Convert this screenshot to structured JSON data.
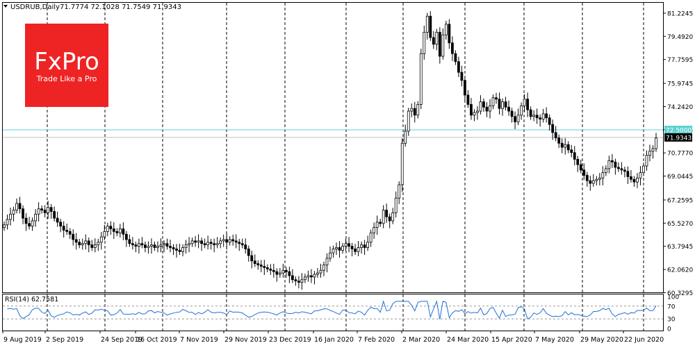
{
  "chart_data": {
    "type": "candlestick",
    "symbol_label": "USDRUB,Daily",
    "ohlc_readout": "71.7774 72.1028 71.7549 71.9343",
    "ylim": [
      60.3,
      82.0
    ],
    "y_ticks": [
      "81.2245",
      "79.4920",
      "77.7595",
      "75.9745",
      "74.2420",
      "72.5095",
      "70.7770",
      "69.0445",
      "67.2595",
      "65.5270",
      "63.7945",
      "62.0620",
      "60.3295"
    ],
    "x_labels": [
      "9 Aug 2019",
      "2 Sep 2019",
      "24 Sep 2019",
      "16 Oct 2019",
      "7 Nov 2019",
      "29 Nov 2019",
      "23 Dec 2019",
      "16 Jan 2020",
      "7 Feb 2020",
      "2 Mar 2020",
      "24 Mar 2020",
      "15 Apr 2020",
      "7 May 2020",
      "29 May 2020",
      "22 Jun 2020"
    ],
    "hline": {
      "value": 72.5,
      "label": "72.5000"
    },
    "current_price": {
      "value": 71.9343,
      "label": "71.9343"
    },
    "closes": [
      65.4,
      65.8,
      66.2,
      66.5,
      67.0,
      66.6,
      65.9,
      65.5,
      65.3,
      65.7,
      66.2,
      66.6,
      66.5,
      66.3,
      66.7,
      66.4,
      65.9,
      65.6,
      65.3,
      65.0,
      64.9,
      64.7,
      64.3,
      64.1,
      63.9,
      64.0,
      64.2,
      63.9,
      63.7,
      63.9,
      64.1,
      64.5,
      64.9,
      65.3,
      65.1,
      64.9,
      64.8,
      65.1,
      64.7,
      64.3,
      64.0,
      63.9,
      63.8,
      64.0,
      63.9,
      63.7,
      63.8,
      63.9,
      63.7,
      63.8,
      63.9,
      64.0,
      63.8,
      63.7,
      63.6,
      63.5,
      63.4,
      63.7,
      63.9,
      64.0,
      64.2,
      64.1,
      64.2,
      64.0,
      63.9,
      64.1,
      64.0,
      63.9,
      64.0,
      64.2,
      64.3,
      64.1,
      64.3,
      64.2,
      64.1,
      64.0,
      63.9,
      63.6,
      63.1,
      62.7,
      62.5,
      62.4,
      62.3,
      62.2,
      62.1,
      62.0,
      61.9,
      61.7,
      61.8,
      62.0,
      61.9,
      61.6,
      61.3,
      61.2,
      61.1,
      61.3,
      61.5,
      61.6,
      61.5,
      61.7,
      61.8,
      62.0,
      62.4,
      62.9,
      63.3,
      63.6,
      63.7,
      63.5,
      63.8,
      64.0,
      63.8,
      63.6,
      63.4,
      63.7,
      63.9,
      63.7,
      64.1,
      64.8,
      65.2,
      65.6,
      65.5,
      66.5,
      66.0,
      65.7,
      66.3,
      67.4,
      68.4,
      71.5,
      72.4,
      73.9,
      74.1,
      73.6,
      74.4,
      78.2,
      79.8,
      81.0,
      79.4,
      78.9,
      79.8,
      78.0,
      79.6,
      80.4,
      79.0,
      78.2,
      77.6,
      76.8,
      76.2,
      75.1,
      74.4,
      73.6,
      73.8,
      73.9,
      74.6,
      74.2,
      73.9,
      74.3,
      74.9,
      74.8,
      74.1,
      74.6,
      74.2,
      73.9,
      73.5,
      73.1,
      73.6,
      74.3,
      74.8,
      74.0,
      73.5,
      73.6,
      73.4,
      73.3,
      73.7,
      73.4,
      72.9,
      72.3,
      71.9,
      71.5,
      71.2,
      71.4,
      71.0,
      70.8,
      70.3,
      69.9,
      69.5,
      69.1,
      68.7,
      68.5,
      68.7,
      68.8,
      68.9,
      69.3,
      69.6,
      70.2,
      70.1,
      69.7,
      69.6,
      69.5,
      69.4,
      69.0,
      68.8,
      68.6,
      68.9,
      69.3,
      69.8,
      70.6,
      70.9,
      71.1,
      71.9
    ]
  }
}
